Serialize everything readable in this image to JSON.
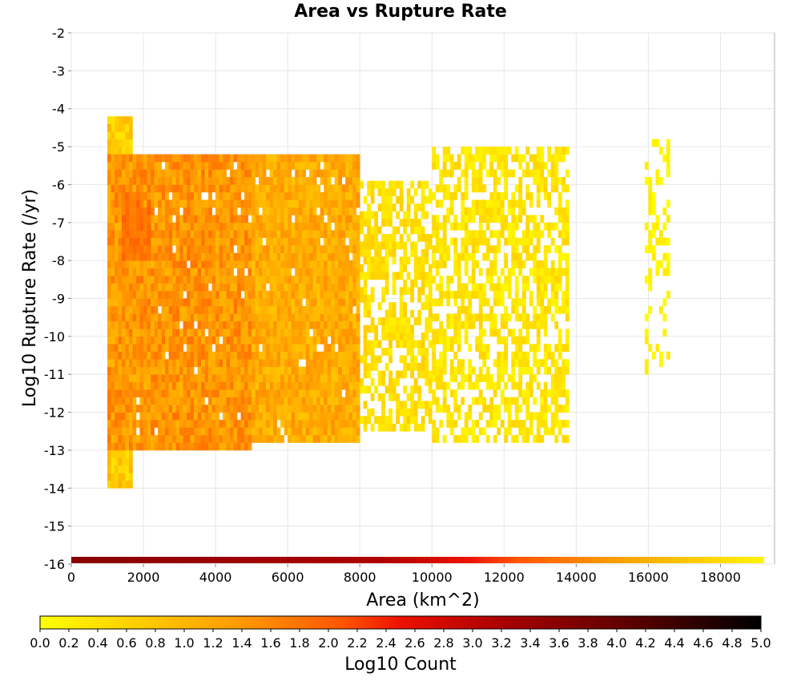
{
  "chart_data": {
    "type": "heatmap",
    "title": "Area vs Rupture Rate",
    "xlabel": "Area (km^2)",
    "ylabel": "Log10 Rupture Rate (/yr)",
    "xlim": [
      0,
      19500
    ],
    "ylim": [
      -16,
      -2
    ],
    "xticks": [
      "0",
      "2000",
      "4000",
      "6000",
      "8000",
      "10000",
      "12000",
      "14000",
      "16000",
      "18000"
    ],
    "yticks": [
      "-2",
      "-3",
      "-4",
      "-5",
      "-6",
      "-7",
      "-8",
      "-9",
      "-10",
      "-11",
      "-12",
      "-13",
      "-14",
      "-15",
      "-16"
    ],
    "grid": true,
    "x_bin_width": 100,
    "y_bin_height": 0.2,
    "colorbar": {
      "label": "Log10 Count",
      "min": 0.0,
      "max": 5.0,
      "ticks": [
        "0.0",
        "0.2",
        "0.4",
        "0.6",
        "0.8",
        "1.0",
        "1.2",
        "1.4",
        "1.6",
        "1.8",
        "2.0",
        "2.2",
        "2.4",
        "2.6",
        "2.8",
        "3.0",
        "3.2",
        "3.4",
        "3.6",
        "3.8",
        "4.0",
        "4.2",
        "4.4",
        "4.6",
        "4.8",
        "5.0"
      ],
      "colors": [
        "#ffff00",
        "#ffcc00",
        "#ff9900",
        "#ff5500",
        "#ee1100",
        "#aa0000",
        "#660000",
        "#000000"
      ]
    },
    "regions": [
      {
        "area": [
          1000,
          1700
        ],
        "rate": [
          -14.0,
          -4.2
        ],
        "log10_count": [
          0.3,
          1.1
        ]
      },
      {
        "area": [
          1000,
          5000
        ],
        "rate": [
          -13.0,
          -5.2
        ],
        "log10_count": [
          1.0,
          1.8
        ]
      },
      {
        "area": [
          1400,
          2200
        ],
        "rate": [
          -8.0,
          -6.2
        ],
        "log10_count": [
          1.6,
          2.0
        ]
      },
      {
        "area": [
          5000,
          8000
        ],
        "rate": [
          -12.8,
          -5.2
        ],
        "log10_count": [
          0.8,
          1.5
        ]
      },
      {
        "area": [
          8000,
          10000
        ],
        "rate": [
          -12.5,
          -6.0
        ],
        "log10_count": [
          0.2,
          0.7
        ]
      },
      {
        "area": [
          10000,
          13800
        ],
        "rate": [
          -12.8,
          -5.0
        ],
        "log10_count": [
          0.1,
          0.6
        ]
      },
      {
        "area": [
          15900,
          16600
        ],
        "rate": [
          -11.0,
          -4.8
        ],
        "log10_count": [
          0.0,
          0.3
        ]
      }
    ],
    "marginal_strip": {
      "rate": -16,
      "area_range": [
        0,
        19200
      ],
      "log10_count_range": [
        0.0,
        3.6
      ]
    }
  }
}
